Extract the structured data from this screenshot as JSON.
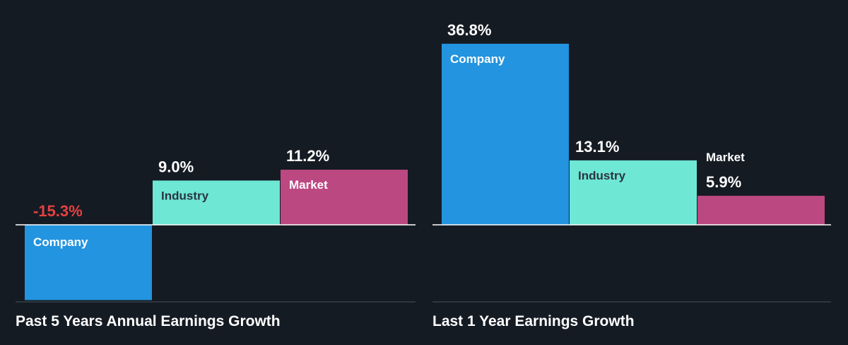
{
  "colors": {
    "background": "#151b23",
    "company": "#2394df",
    "industry": "#6ee7d5",
    "market": "#bc4882",
    "negative_value": "#e64141",
    "value": "#ffffff",
    "axis": "#ffffff",
    "bottom_line": "#3a4049"
  },
  "chart_data": [
    {
      "type": "bar",
      "title": "Past 5 Years Annual Earnings Growth",
      "categories": [
        "Company",
        "Industry",
        "Market"
      ],
      "values": [
        -15.3,
        9.0,
        11.2
      ],
      "value_labels": [
        "-15.3%",
        "9.0%",
        "11.2%"
      ],
      "unit": "%",
      "grid": false,
      "legend": "none"
    },
    {
      "type": "bar",
      "title": "Last 1 Year Earnings Growth",
      "categories": [
        "Company",
        "Industry",
        "Market"
      ],
      "values": [
        36.8,
        13.1,
        5.9
      ],
      "value_labels": [
        "36.8%",
        "13.1%",
        "5.9%"
      ],
      "unit": "%",
      "grid": false,
      "legend": "none"
    }
  ]
}
